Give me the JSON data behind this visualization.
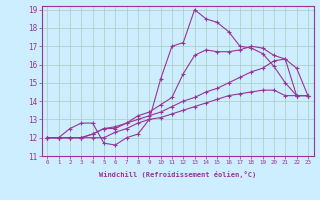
{
  "xlabel": "Windchill (Refroidissement éolien,°C)",
  "background_color": "#cceeff",
  "grid_color": "#aaccbb",
  "line_color": "#993399",
  "xlim": [
    -0.5,
    23.5
  ],
  "ylim": [
    11,
    19.2
  ],
  "xticks": [
    0,
    1,
    2,
    3,
    4,
    5,
    6,
    7,
    8,
    9,
    10,
    11,
    12,
    13,
    14,
    15,
    16,
    17,
    18,
    19,
    20,
    21,
    22,
    23
  ],
  "yticks": [
    11,
    12,
    13,
    14,
    15,
    16,
    17,
    18,
    19
  ],
  "series": [
    {
      "x": [
        0,
        1,
        2,
        3,
        4,
        5,
        6,
        7,
        8,
        9,
        10,
        11,
        12,
        13,
        14,
        15,
        16,
        17,
        18,
        19,
        20,
        21,
        22,
        23
      ],
      "y": [
        12.0,
        12.0,
        12.5,
        12.8,
        12.8,
        11.7,
        11.6,
        12.0,
        12.2,
        13.0,
        15.2,
        17.0,
        17.2,
        19.0,
        18.5,
        18.3,
        17.8,
        17.0,
        16.9,
        16.6,
        15.9,
        15.0,
        14.3,
        14.3
      ]
    },
    {
      "x": [
        0,
        1,
        2,
        3,
        4,
        5,
        6,
        7,
        8,
        9,
        10,
        11,
        12,
        13,
        14,
        15,
        16,
        17,
        18,
        19,
        20,
        21,
        22,
        23
      ],
      "y": [
        12.0,
        12.0,
        12.0,
        12.0,
        12.2,
        12.5,
        12.6,
        12.8,
        13.2,
        13.4,
        13.8,
        14.2,
        15.5,
        16.5,
        16.8,
        16.7,
        16.7,
        16.8,
        17.0,
        16.9,
        16.5,
        16.3,
        15.8,
        14.3
      ]
    },
    {
      "x": [
        0,
        1,
        2,
        3,
        4,
        5,
        6,
        7,
        8,
        9,
        10,
        11,
        12,
        13,
        14,
        15,
        16,
        17,
        18,
        19,
        20,
        21,
        22,
        23
      ],
      "y": [
        12.0,
        12.0,
        12.0,
        12.0,
        12.2,
        12.5,
        12.5,
        12.8,
        13.0,
        13.2,
        13.4,
        13.7,
        14.0,
        14.2,
        14.5,
        14.7,
        15.0,
        15.3,
        15.6,
        15.8,
        16.2,
        16.3,
        14.3,
        14.3
      ]
    },
    {
      "x": [
        0,
        1,
        2,
        3,
        4,
        5,
        6,
        7,
        8,
        9,
        10,
        11,
        12,
        13,
        14,
        15,
        16,
        17,
        18,
        19,
        20,
        21,
        22,
        23
      ],
      "y": [
        12.0,
        12.0,
        12.0,
        12.0,
        12.0,
        12.0,
        12.3,
        12.5,
        12.8,
        13.0,
        13.1,
        13.3,
        13.5,
        13.7,
        13.9,
        14.1,
        14.3,
        14.4,
        14.5,
        14.6,
        14.6,
        14.3,
        14.3,
        14.3
      ]
    }
  ]
}
